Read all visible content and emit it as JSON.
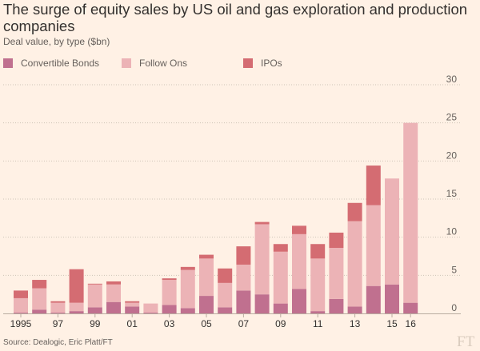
{
  "title": "The surge of equity sales by US oil and gas exploration and production companies",
  "subtitle": "Deal value, by type ($bn)",
  "source": "Source: Dealogic, Eric Platt/FT",
  "logo": "FT",
  "colors": {
    "background": "#fff1e5",
    "convertible": "#c0708f",
    "follow_ons": "#ecb3b6",
    "ipos": "#d46c72",
    "grid": "#cfc3b7"
  },
  "chart_data": {
    "type": "bar",
    "stacked": true,
    "categories": [
      "1995",
      "1996",
      "1997",
      "1998",
      "1999",
      "2000",
      "2001",
      "2002",
      "2003",
      "2004",
      "2005",
      "2006",
      "2007",
      "2008",
      "2009",
      "2010",
      "2011",
      "2012",
      "2013",
      "2014",
      "2015",
      "2016"
    ],
    "x_tick_labels": [
      "1995",
      "",
      "97",
      "",
      "99",
      "",
      "01",
      "",
      "03",
      "",
      "05",
      "",
      "07",
      "",
      "09",
      "",
      "11",
      "",
      "13",
      "",
      "15",
      "16"
    ],
    "series": [
      {
        "name": "Convertible Bonds",
        "color": "#c0708f",
        "values": [
          0.1,
          0.5,
          0.1,
          0.3,
          0.8,
          1.5,
          0.9,
          0.1,
          1.1,
          0.7,
          2.3,
          0.8,
          3.0,
          2.5,
          1.3,
          3.2,
          0.3,
          1.9,
          0.9,
          3.6,
          3.8,
          1.4
        ]
      },
      {
        "name": "Follow Ons",
        "color": "#ecb3b6",
        "values": [
          1.9,
          2.8,
          1.3,
          1.1,
          3.0,
          2.3,
          0.5,
          1.2,
          3.3,
          5.0,
          4.9,
          3.2,
          3.4,
          9.2,
          6.8,
          7.2,
          6.9,
          6.7,
          11.2,
          10.6,
          13.9,
          23.6
        ]
      },
      {
        "name": "IPOs",
        "color": "#d46c72",
        "values": [
          1.0,
          1.1,
          0.2,
          4.4,
          0.1,
          0.4,
          0.2,
          0.0,
          0.2,
          0.4,
          0.5,
          1.9,
          2.4,
          0.3,
          1.0,
          1.1,
          1.9,
          2.0,
          2.4,
          5.2,
          0.0,
          0.0
        ]
      }
    ],
    "ylim": [
      0,
      30
    ],
    "yticks": [
      "0",
      "5",
      "10",
      "15",
      "20",
      "25",
      "30"
    ],
    "y_axis_position": "right",
    "grid": true,
    "legend_position": "top-left"
  }
}
